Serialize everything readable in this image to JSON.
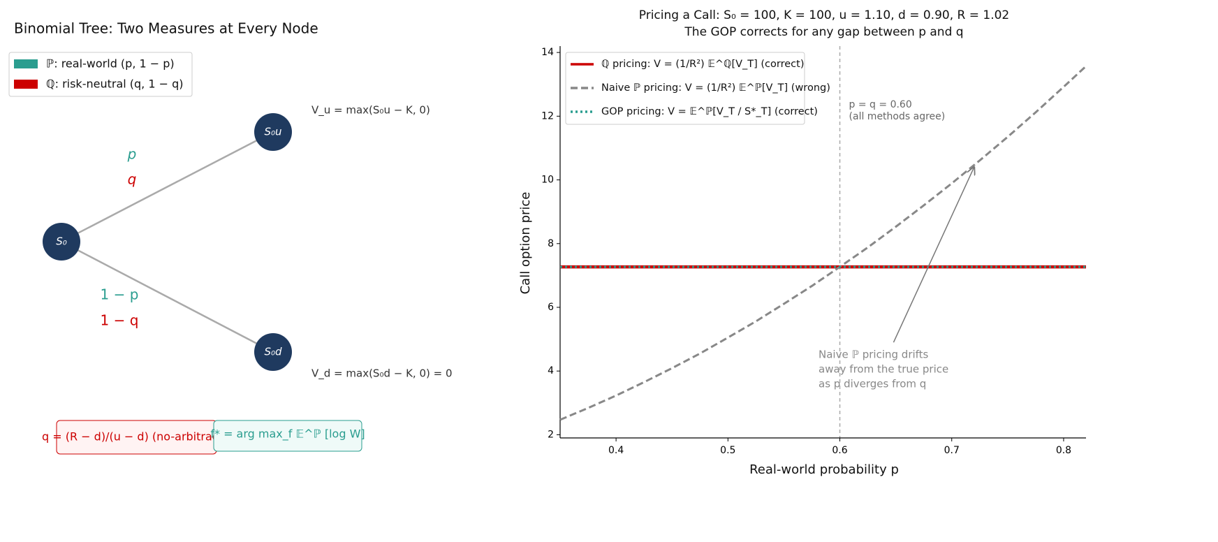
{
  "diagram": {
    "title": "Binomial Tree: Two Measures at Every Node",
    "legend": [
      "ℙ: real-world (p, 1 − p)",
      "ℚ: risk-neutral (q, 1 − q)"
    ],
    "nodes": [
      "S₀",
      "S₀u",
      "S₀d"
    ],
    "edge_labels": [
      "p",
      "q",
      "1 − p",
      "1 − q"
    ],
    "payoffs": [
      "V_u = max(S₀u − K, 0)",
      "V_d = max(S₀d − K, 0) = 0"
    ],
    "formulas": [
      "q = (R − d)/(u − d)  (no-arbitrage)",
      "f* = arg max_f 𝔼^ℙ [log W]"
    ]
  },
  "chart_data": {
    "type": "line",
    "title": "Pricing a Call: S₀ = 100, K = 100, u = 1.10, d = 0.90, R = 1.02",
    "subtitle": "The GOP corrects for any gap between p and q",
    "x_label": "Real-world probability p",
    "y_label": "Call option price",
    "x": [
      0.35,
      0.375,
      0.4,
      0.425,
      0.45,
      0.475,
      0.5,
      0.525,
      0.55,
      0.575,
      0.6,
      0.625,
      0.65,
      0.675,
      0.7,
      0.725,
      0.75,
      0.775,
      0.8,
      0.82
    ],
    "series": [
      {
        "name": "ℚ pricing: V = (1/R²) 𝔼^ℚ[V_T]  (correct)",
        "color": "#cc0000",
        "dash": "solid",
        "values": [
          7.27,
          7.27,
          7.27,
          7.27,
          7.27,
          7.27,
          7.27,
          7.27,
          7.27,
          7.27,
          7.27,
          7.27,
          7.27,
          7.27,
          7.27,
          7.27,
          7.27,
          7.27,
          7.27,
          7.27
        ]
      },
      {
        "name": "Naive ℙ pricing: V = (1/R²) 𝔼^ℙ[V_T]  (wrong)",
        "color": "#888888",
        "dash": "dashed",
        "values": [
          2.47,
          2.84,
          3.23,
          3.65,
          4.09,
          4.55,
          5.05,
          5.56,
          6.11,
          6.67,
          7.27,
          7.88,
          8.53,
          9.2,
          9.89,
          10.61,
          11.35,
          12.12,
          12.92,
          13.57
        ]
      },
      {
        "name": "GOP pricing: V = 𝔼^ℙ[V_T / S*_T]  (correct)",
        "color": "#2a9d8f",
        "dash": "dotted",
        "values": [
          7.27,
          7.27,
          7.27,
          7.27,
          7.27,
          7.27,
          7.27,
          7.27,
          7.27,
          7.27,
          7.27,
          7.27,
          7.27,
          7.27,
          7.27,
          7.27,
          7.27,
          7.27,
          7.27,
          7.27
        ]
      }
    ],
    "xlim": [
      0.35,
      0.82
    ],
    "ylim": [
      1.9,
      14.2
    ],
    "xticks": [
      0.4,
      0.5,
      0.6,
      0.7,
      0.8
    ],
    "yticks": [
      2,
      4,
      6,
      8,
      10,
      12,
      14
    ],
    "vline": 0.6,
    "annotations": [
      {
        "lines": [
          "p = q = 0.60",
          "(all methods agree)"
        ]
      },
      {
        "lines": [
          "Naive ℙ pricing drifts",
          "away from the true price",
          "as p diverges from q"
        ],
        "arrow_from": [
          0.648,
          4.9
        ],
        "arrow_to": [
          0.72,
          10.4
        ]
      }
    ],
    "legend": "upper left"
  }
}
